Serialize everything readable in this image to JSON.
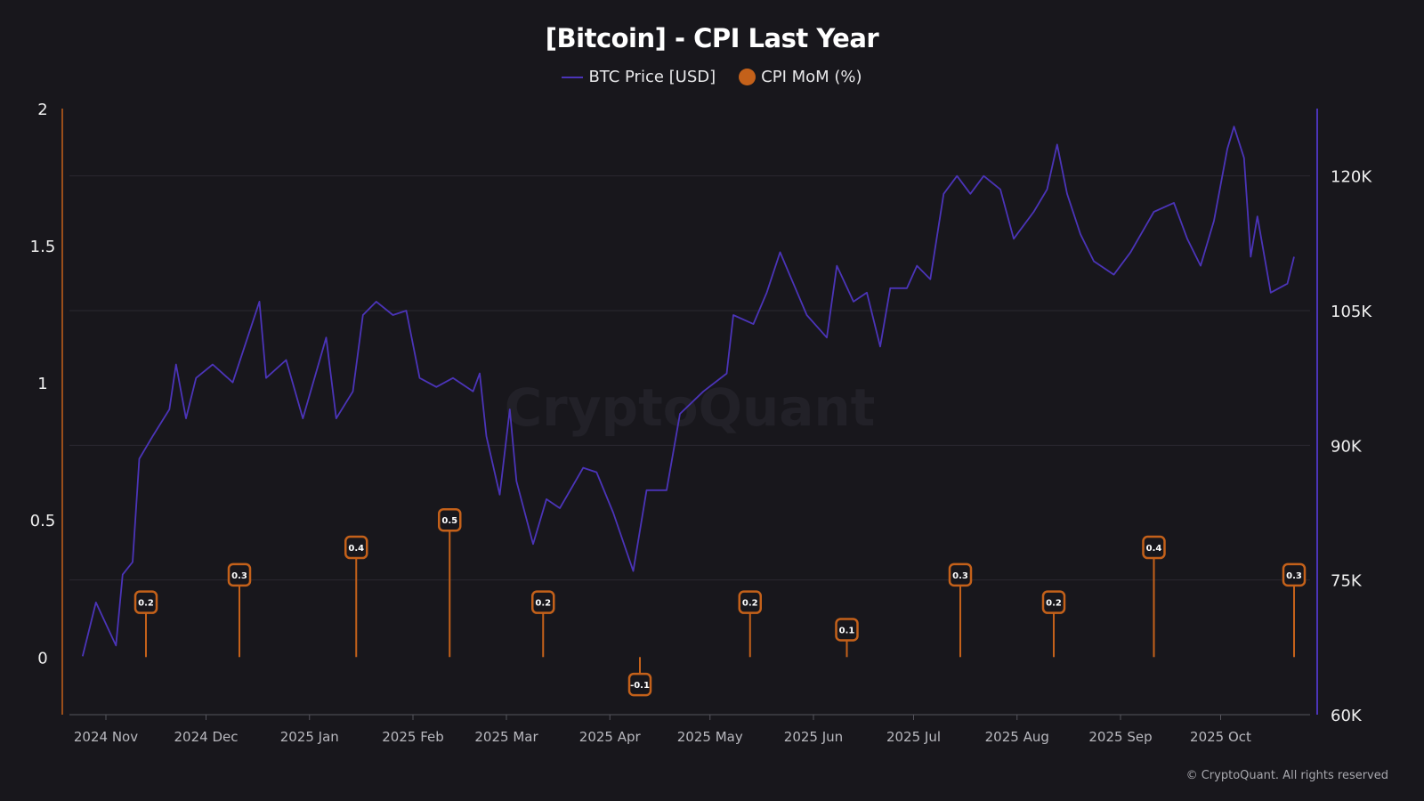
{
  "chart_data": {
    "type": "line",
    "title": "[Bitcoin] - CPI Last Year",
    "legend_placement": "top-center",
    "watermark": "CryptoQuant",
    "copyright": "© CryptoQuant. All rights reserved",
    "colors": {
      "btc": "#4b34b8",
      "cpi": "#c4611a",
      "background": "#18171c"
    },
    "x_ticks": [
      "2024 Nov",
      "2024 Dec",
      "2025 Jan",
      "2025 Feb",
      "2025 Mar",
      "2025 Apr",
      "2025 May",
      "2025 Jun",
      "2025 Jul",
      "2025 Aug",
      "2025 Sep",
      "2025 Oct"
    ],
    "y_left": {
      "ticks": [
        "0",
        "0.5",
        "1",
        "1.5",
        "2"
      ],
      "tick_values": [
        0,
        0.5,
        1,
        1.5,
        2
      ],
      "range": [
        -0.21,
        2.0
      ]
    },
    "y_right": {
      "ticks": [
        "60K",
        "75K",
        "90K",
        "105K",
        "120K"
      ],
      "tick_values": [
        60000,
        75000,
        90000,
        105000,
        120000
      ],
      "range": [
        60000,
        127500
      ]
    },
    "grid": true,
    "series": [
      {
        "name": "BTC Price [USD]",
        "axis": "right",
        "style": "line",
        "points": [
          [
            "2024-10-25",
            66500
          ],
          [
            "2024-10-29",
            72500
          ],
          [
            "2024-11-04",
            67700
          ],
          [
            "2024-11-06",
            75600
          ],
          [
            "2024-11-09",
            77000
          ],
          [
            "2024-11-11",
            88500
          ],
          [
            "2024-11-15",
            91000
          ],
          [
            "2024-11-20",
            94000
          ],
          [
            "2024-11-22",
            99000
          ],
          [
            "2024-11-25",
            93000
          ],
          [
            "2024-11-28",
            97500
          ],
          [
            "2024-12-03",
            99000
          ],
          [
            "2024-12-09",
            97000
          ],
          [
            "2024-12-13",
            101500
          ],
          [
            "2024-12-17",
            106000
          ],
          [
            "2024-12-19",
            97500
          ],
          [
            "2024-12-25",
            99500
          ],
          [
            "2024-12-30",
            93000
          ],
          [
            "2025-01-06",
            102000
          ],
          [
            "2025-01-09",
            93000
          ],
          [
            "2025-01-14",
            96000
          ],
          [
            "2025-01-17",
            104500
          ],
          [
            "2025-01-21",
            106000
          ],
          [
            "2025-01-26",
            104500
          ],
          [
            "2025-01-30",
            105000
          ],
          [
            "2025-02-03",
            97500
          ],
          [
            "2025-02-08",
            96500
          ],
          [
            "2025-02-13",
            97500
          ],
          [
            "2025-02-19",
            96000
          ],
          [
            "2025-02-21",
            98000
          ],
          [
            "2025-02-23",
            91000
          ],
          [
            "2025-02-27",
            84500
          ],
          [
            "2025-03-02",
            94000
          ],
          [
            "2025-03-04",
            86000
          ],
          [
            "2025-03-09",
            79000
          ],
          [
            "2025-03-13",
            84000
          ],
          [
            "2025-03-17",
            83000
          ],
          [
            "2025-03-24",
            87500
          ],
          [
            "2025-03-28",
            87000
          ],
          [
            "2025-04-02",
            82500
          ],
          [
            "2025-04-08",
            76000
          ],
          [
            "2025-04-12",
            85000
          ],
          [
            "2025-04-18",
            85000
          ],
          [
            "2025-04-22",
            93500
          ],
          [
            "2025-04-29",
            96000
          ],
          [
            "2025-05-06",
            98000
          ],
          [
            "2025-05-08",
            104500
          ],
          [
            "2025-05-14",
            103500
          ],
          [
            "2025-05-18",
            107000
          ],
          [
            "2025-05-22",
            111500
          ],
          [
            "2025-05-26",
            108000
          ],
          [
            "2025-05-30",
            104500
          ],
          [
            "2025-06-05",
            102000
          ],
          [
            "2025-06-08",
            110000
          ],
          [
            "2025-06-13",
            106000
          ],
          [
            "2025-06-17",
            107000
          ],
          [
            "2025-06-21",
            101000
          ],
          [
            "2025-06-24",
            107500
          ],
          [
            "2025-06-29",
            107500
          ],
          [
            "2025-07-02",
            110000
          ],
          [
            "2025-07-06",
            108500
          ],
          [
            "2025-07-10",
            118000
          ],
          [
            "2025-07-14",
            120000
          ],
          [
            "2025-07-18",
            118000
          ],
          [
            "2025-07-22",
            120000
          ],
          [
            "2025-07-27",
            118500
          ],
          [
            "2025-07-31",
            113000
          ],
          [
            "2025-08-06",
            116000
          ],
          [
            "2025-08-10",
            118500
          ],
          [
            "2025-08-13",
            123500
          ],
          [
            "2025-08-16",
            118000
          ],
          [
            "2025-08-20",
            113500
          ],
          [
            "2025-08-24",
            110500
          ],
          [
            "2025-08-30",
            109000
          ],
          [
            "2025-09-04",
            111500
          ],
          [
            "2025-09-11",
            116000
          ],
          [
            "2025-09-17",
            117000
          ],
          [
            "2025-09-21",
            113000
          ],
          [
            "2025-09-25",
            110000
          ],
          [
            "2025-09-29",
            115000
          ],
          [
            "2025-10-03",
            123000
          ],
          [
            "2025-10-05",
            125500
          ],
          [
            "2025-10-08",
            122000
          ],
          [
            "2025-10-10",
            111000
          ],
          [
            "2025-10-12",
            115500
          ],
          [
            "2025-10-16",
            107000
          ],
          [
            "2025-10-21",
            108000
          ],
          [
            "2025-10-23",
            111000
          ]
        ]
      },
      {
        "name": "CPI MoM (%)",
        "axis": "left",
        "style": "lollipop",
        "points": [
          [
            "2024-11-13",
            0.2,
            "0.2"
          ],
          [
            "2024-12-11",
            0.3,
            "0.3"
          ],
          [
            "2025-01-15",
            0.4,
            "0.4"
          ],
          [
            "2025-02-12",
            0.5,
            "0.5"
          ],
          [
            "2025-03-12",
            0.2,
            "0.2"
          ],
          [
            "2025-04-10",
            -0.1,
            "-0.1"
          ],
          [
            "2025-05-13",
            0.2,
            "0.2"
          ],
          [
            "2025-06-11",
            0.1,
            "0.1"
          ],
          [
            "2025-07-15",
            0.3,
            "0.3"
          ],
          [
            "2025-08-12",
            0.2,
            "0.2"
          ],
          [
            "2025-09-11",
            0.4,
            "0.4"
          ],
          [
            "2025-10-23",
            0.3,
            "0.3"
          ]
        ]
      }
    ]
  }
}
